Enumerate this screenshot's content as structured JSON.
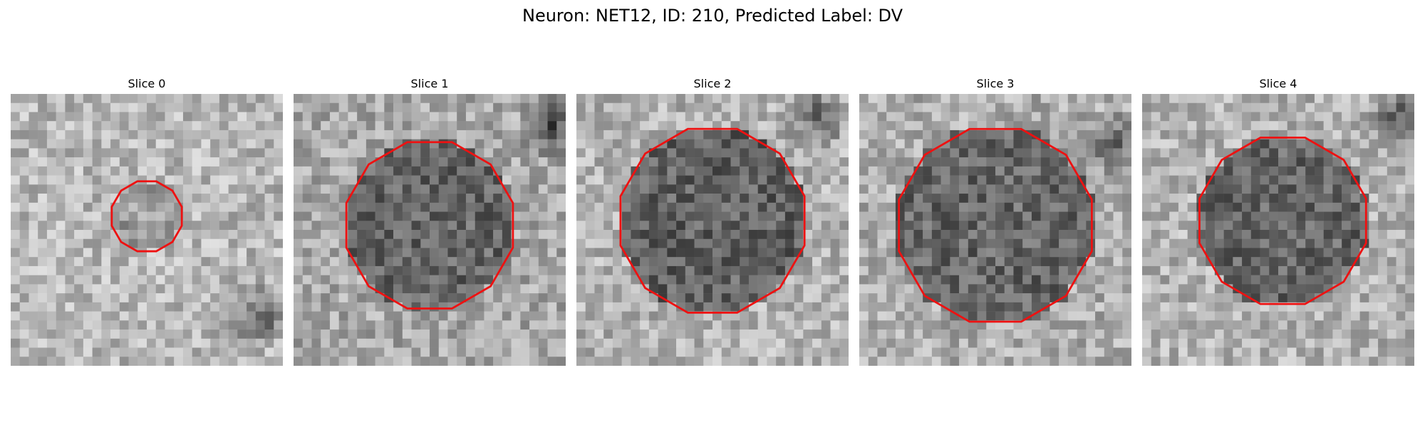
{
  "figure": {
    "title": "Neuron: NET12, ID: 210, Predicted Label: DV"
  },
  "contour_color": "#ee1111",
  "panels": [
    {
      "title": "Slice 0",
      "seed": 11,
      "cmap": "grayscale"
    },
    {
      "title": "Slice 1",
      "seed": 23,
      "cmap": "grayscale"
    },
    {
      "title": "Slice 2",
      "seed": 37,
      "cmap": "grayscale"
    },
    {
      "title": "Slice 3",
      "seed": 41,
      "cmap": "grayscale"
    },
    {
      "title": "Slice 4",
      "seed": 59,
      "cmap": "grayscale"
    }
  ]
}
